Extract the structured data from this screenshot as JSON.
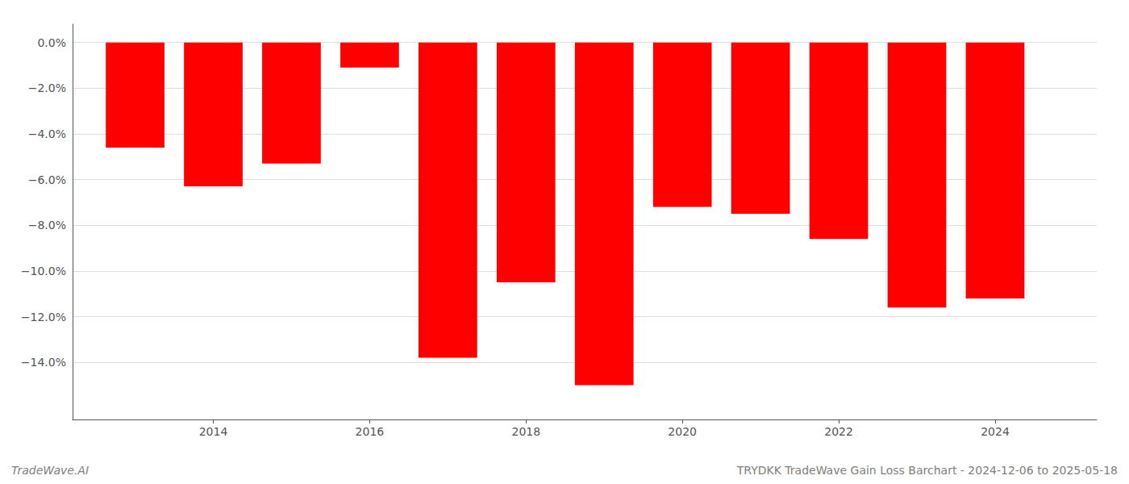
{
  "chart_data": {
    "type": "bar",
    "x": [
      2013,
      2014,
      2015,
      2016,
      2017,
      2018,
      2019,
      2020,
      2021,
      2022,
      2023,
      2024
    ],
    "values": [
      -4.6,
      -6.3,
      -5.3,
      -1.1,
      -13.8,
      -10.5,
      -15.0,
      -7.2,
      -7.5,
      -8.6,
      -11.6,
      -11.2
    ],
    "color": "#ff0000",
    "xlim": [
      2012.2,
      2025.3
    ],
    "xticks": [
      2014,
      2016,
      2018,
      2020,
      2022,
      2024
    ],
    "ylim": [
      -16.5,
      0.8
    ],
    "yticks": [
      {
        "value": 0.0,
        "label": "0.0%"
      },
      {
        "value": -2.0,
        "label": "−2.0%"
      },
      {
        "value": -4.0,
        "label": "−4.0%"
      },
      {
        "value": -6.0,
        "label": "−6.0%"
      },
      {
        "value": -8.0,
        "label": "−8.0%"
      },
      {
        "value": -10.0,
        "label": "−10.0%"
      },
      {
        "value": -12.0,
        "label": "−12.0%"
      },
      {
        "value": -14.0,
        "label": "−14.0%"
      }
    ],
    "grid": true,
    "annotations": [
      "TradeWave.AI",
      "TRYDKK TradeWave Gain Loss Barchart - 2024-12-06 to 2025-05-18"
    ]
  }
}
